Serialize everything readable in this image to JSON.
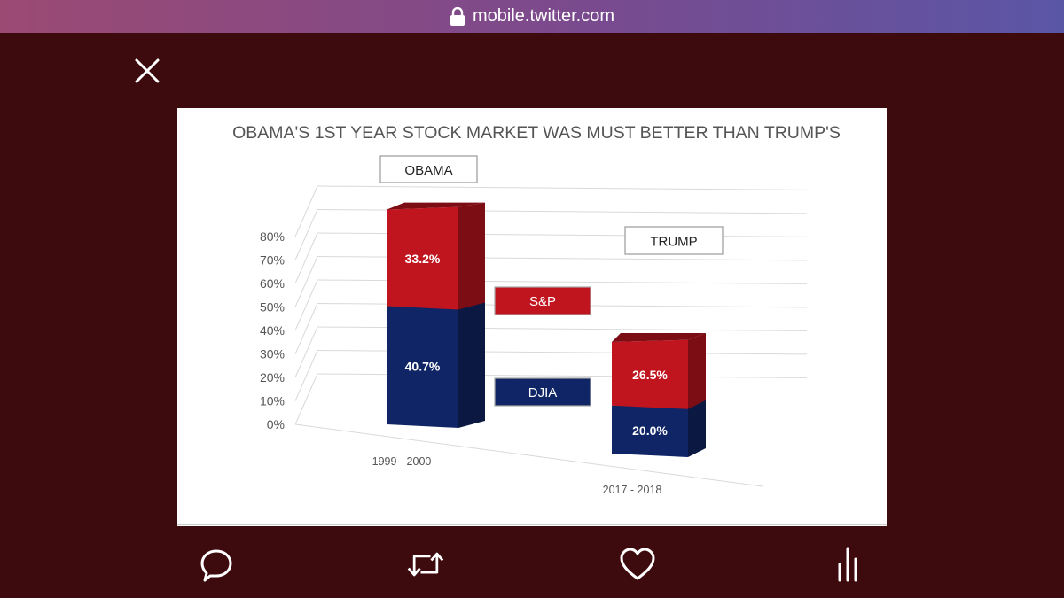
{
  "browser": {
    "url": "mobile.twitter.com",
    "lock_icon": "lock-icon"
  },
  "viewer": {
    "close_icon": "close-icon",
    "actions": [
      {
        "name": "reply-button",
        "icon": "comment-icon"
      },
      {
        "name": "retweet-button",
        "icon": "retweet-icon"
      },
      {
        "name": "like-button",
        "icon": "heart-icon"
      },
      {
        "name": "analytics-button",
        "icon": "analytics-icon"
      }
    ]
  },
  "chart_data": {
    "type": "bar",
    "stacked": true,
    "style": "3d",
    "title": "OBAMA'S 1ST YEAR STOCK MARKET WAS MUST BETTER THAN TRUMP'S",
    "categories": [
      "1999 - 2000",
      "2017 - 2018"
    ],
    "category_labels": [
      "OBAMA",
      "TRUMP"
    ],
    "series": [
      {
        "name": "DJIA",
        "values": [
          40.7,
          20.0
        ],
        "labels": [
          "40.7%",
          "20.0%"
        ],
        "color": "#0f2565"
      },
      {
        "name": "S&P",
        "values": [
          33.2,
          26.5
        ],
        "labels": [
          "33.2%",
          "26.5%"
        ],
        "color": "#c0141e"
      }
    ],
    "yticks": [
      "0%",
      "10%",
      "20%",
      "30%",
      "40%",
      "50%",
      "60%",
      "70%",
      "80%"
    ],
    "ylim": [
      0,
      80
    ],
    "grid": true,
    "legend_position": "center"
  }
}
